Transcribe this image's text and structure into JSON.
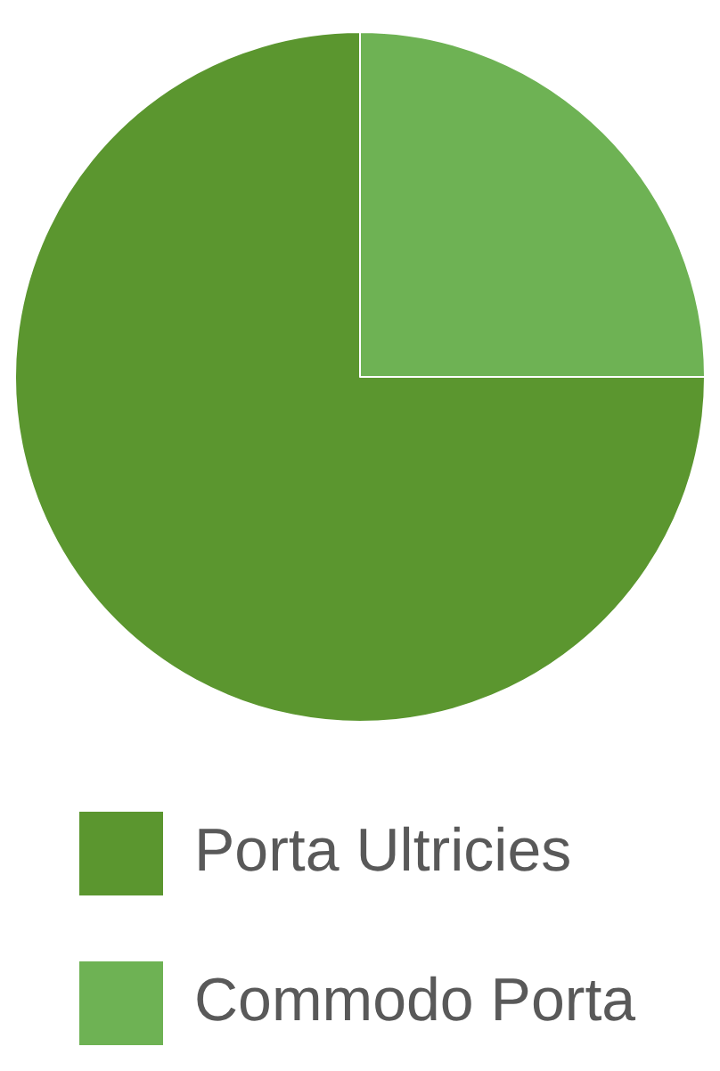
{
  "chart_data": {
    "type": "pie",
    "categories": [
      "Porta Ultricies",
      "Commodo Porta"
    ],
    "values": [
      75,
      25
    ],
    "colors": [
      "#5b962f",
      "#6eb254"
    ],
    "legend": "bottom"
  }
}
